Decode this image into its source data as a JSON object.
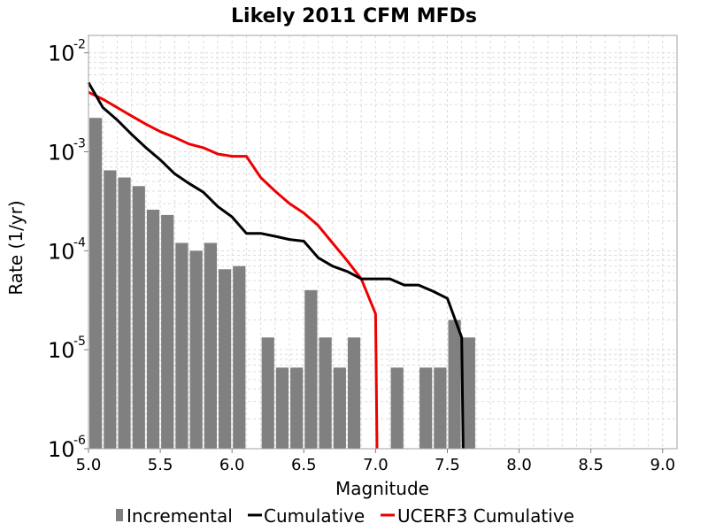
{
  "chart_data": {
    "type": "bar",
    "title": "Likely 2011 CFM MFDs",
    "xlabel": "Magnitude",
    "ylabel": "Rate (1/yr)",
    "xlim": [
      5.0,
      9.1
    ],
    "ylim": [
      1e-06,
      0.015
    ],
    "y_scale": "log",
    "grid": true,
    "legend_placement": "bottom",
    "x_ticks": [
      "5.0",
      "5.5",
      "6.0",
      "6.5",
      "7.0",
      "7.5",
      "8.0",
      "8.5",
      "9.0"
    ],
    "y_ticks": [
      {
        "base": "10",
        "exp": "-6",
        "value": 1e-06
      },
      {
        "base": "10",
        "exp": "-5",
        "value": 1e-05
      },
      {
        "base": "10",
        "exp": "-4",
        "value": 0.0001
      },
      {
        "base": "10",
        "exp": "-3",
        "value": 0.001
      },
      {
        "base": "10",
        "exp": "-2",
        "value": 0.01
      }
    ],
    "series": [
      {
        "name": "Incremental",
        "kind": "bar",
        "color": "#808080",
        "x": [
          5.05,
          5.15,
          5.25,
          5.35,
          5.45,
          5.55,
          5.65,
          5.75,
          5.85,
          5.95,
          6.05,
          6.25,
          6.35,
          6.45,
          6.55,
          6.65,
          6.75,
          6.85,
          7.15,
          7.35,
          7.45,
          7.55,
          7.65
        ],
        "y": [
          0.0022,
          0.00065,
          0.00055,
          0.00045,
          0.00026,
          0.00023,
          0.00012,
          0.0001,
          0.00012,
          6.5e-05,
          7e-05,
          1.33e-05,
          6.6e-06,
          6.6e-06,
          4e-05,
          1.33e-05,
          6.6e-06,
          1.33e-05,
          6.6e-06,
          6.6e-06,
          6.6e-06,
          2e-05,
          1.33e-05
        ]
      },
      {
        "name": "Cumulative",
        "kind": "line",
        "color": "#000000",
        "x": [
          5.0,
          5.1,
          5.2,
          5.3,
          5.4,
          5.5,
          5.6,
          5.7,
          5.8,
          5.9,
          6.0,
          6.1,
          6.2,
          6.3,
          6.4,
          6.5,
          6.6,
          6.7,
          6.8,
          6.9,
          7.0,
          7.1,
          7.2,
          7.3,
          7.4,
          7.5,
          7.6,
          7.61
        ],
        "y": [
          0.005,
          0.0028,
          0.0021,
          0.0015,
          0.0011,
          0.00083,
          0.0006,
          0.00048,
          0.00039,
          0.00028,
          0.00022,
          0.00015,
          0.00015,
          0.00014,
          0.00013,
          0.000125,
          8.5e-05,
          7e-05,
          6.2e-05,
          5.2e-05,
          5.2e-05,
          5.2e-05,
          4.5e-05,
          4.5e-05,
          3.9e-05,
          3.3e-05,
          1.33e-05,
          1e-06
        ]
      },
      {
        "name": "UCERF3 Cumulative",
        "kind": "line",
        "color": "#ee0000",
        "x": [
          5.0,
          5.1,
          5.2,
          5.3,
          5.4,
          5.5,
          5.6,
          5.7,
          5.8,
          5.9,
          6.0,
          6.1,
          6.2,
          6.3,
          6.4,
          6.5,
          6.6,
          6.7,
          6.8,
          6.9,
          7.0,
          7.01
        ],
        "y": [
          0.004,
          0.0034,
          0.0028,
          0.0023,
          0.0019,
          0.0016,
          0.0014,
          0.0012,
          0.0011,
          0.00095,
          0.0009,
          0.0009,
          0.00055,
          0.0004,
          0.0003,
          0.00024,
          0.00018,
          0.00012,
          8e-05,
          5.2e-05,
          2.3e-05,
          1e-06
        ]
      }
    ]
  }
}
